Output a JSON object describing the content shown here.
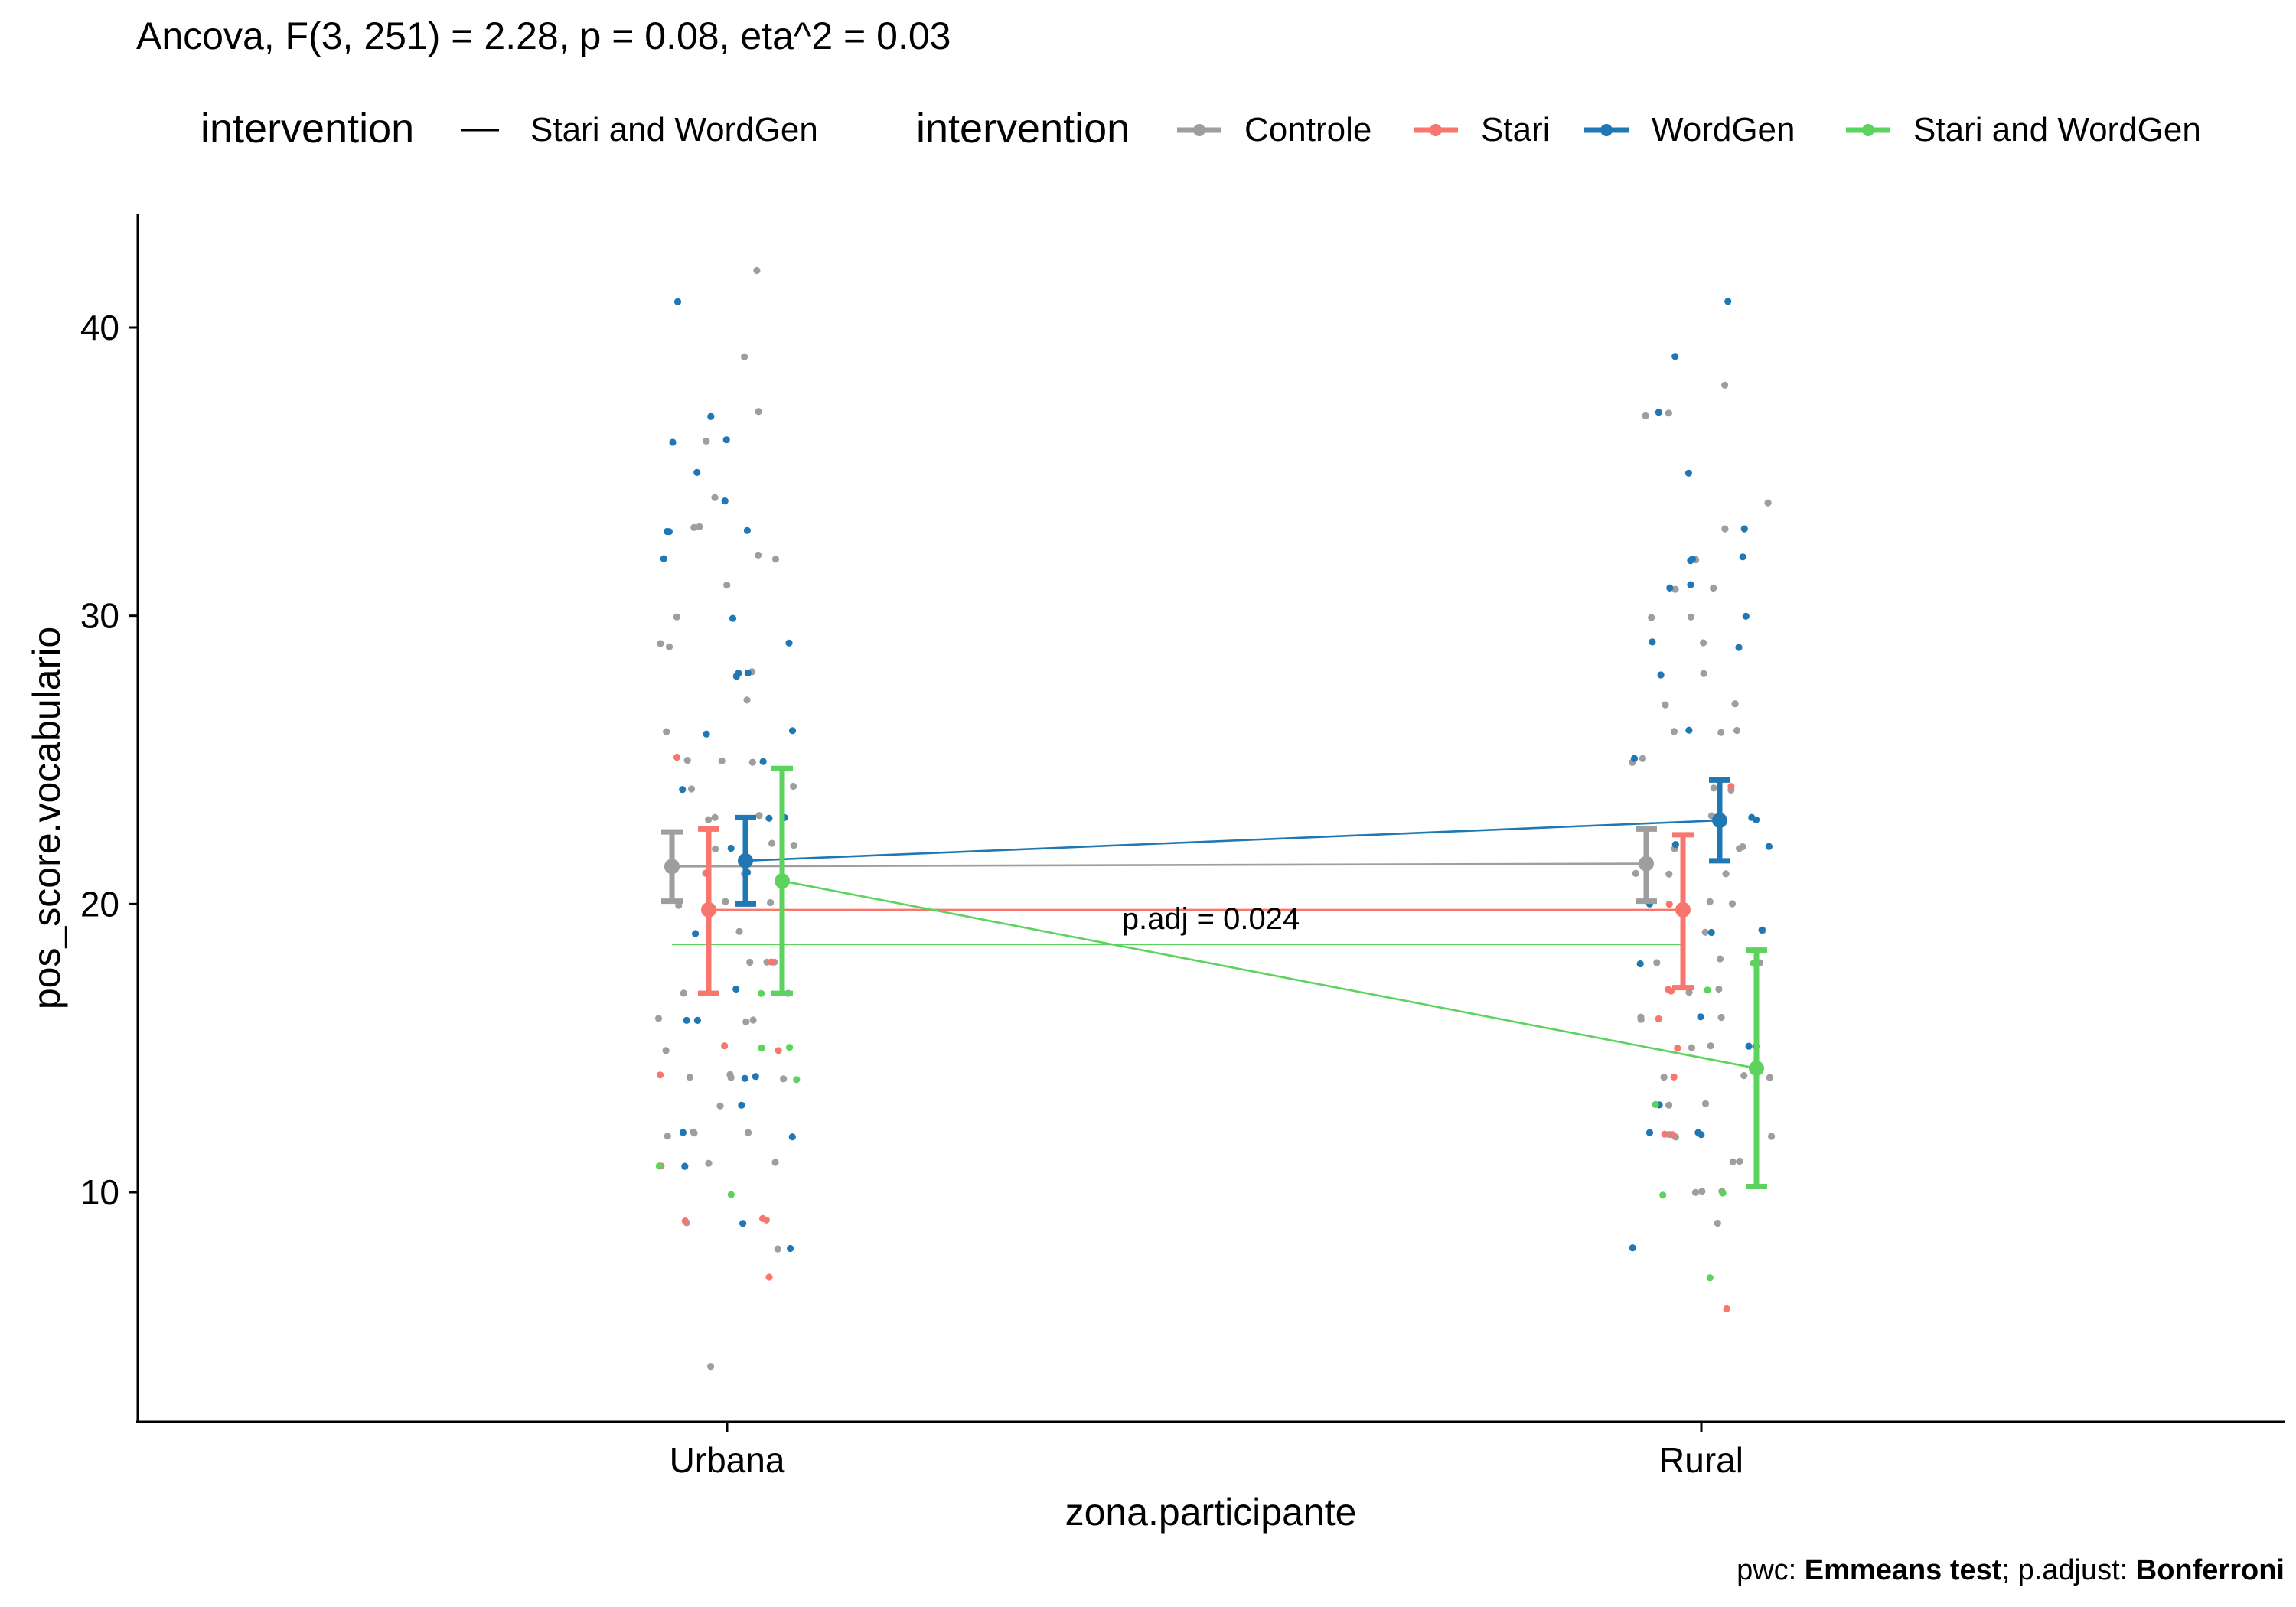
{
  "chart_data": {
    "type": "scatter",
    "title": "Ancova, F(3, 251) = 2.28, p = 0.08, eta^2 = 0.03",
    "xlabel": "zona.participante",
    "ylabel": "pos_score.vocabulario",
    "categories": [
      "Urbana",
      "Rural"
    ],
    "ylim": [
      3,
      44
    ],
    "yticks": [
      10,
      20,
      30,
      40
    ],
    "grid": false,
    "legend_placement": "top",
    "legend_line": {
      "title": "intervention",
      "label": "Stari and WordGen"
    },
    "legend_points": {
      "title": "intervention"
    },
    "series": [
      {
        "name": "Controle",
        "color": "#9e9e9e",
        "means": [
          21.3,
          21.4
        ],
        "ci_low": [
          20.1,
          20.1
        ],
        "ci_high": [
          22.5,
          22.6
        ],
        "points": {
          "Urbana": [
            34,
            36,
            33,
            32,
            29,
            28,
            25,
            24,
            23,
            22,
            21,
            20,
            19,
            18,
            17,
            16,
            14,
            14,
            13,
            12,
            12,
            11,
            9,
            39,
            37,
            42,
            33,
            32,
            29,
            27,
            26,
            25,
            24,
            23,
            22,
            21,
            20,
            18,
            17,
            16,
            15,
            14,
            12,
            11,
            8,
            4,
            31,
            30,
            25,
            23,
            22,
            20,
            18,
            16,
            14,
            12
          ],
          "Rural": [
            37,
            33,
            31,
            29,
            27,
            26,
            25,
            24,
            23,
            22,
            21,
            20,
            19,
            18,
            17,
            16,
            15,
            14,
            13,
            12,
            11,
            10,
            10,
            37,
            34,
            32,
            31,
            30,
            28,
            27,
            26,
            25,
            24,
            22,
            21,
            20,
            19,
            18,
            17,
            16,
            15,
            14,
            13,
            12,
            11,
            10,
            38,
            30,
            26,
            22,
            21,
            18,
            16,
            14,
            12,
            9
          ]
        }
      },
      {
        "name": "Stari",
        "color": "#f8766d",
        "means": [
          19.8,
          19.8
        ],
        "ci_low": [
          16.9,
          17.1
        ],
        "ci_high": [
          22.6,
          22.4
        ],
        "points": {
          "Urbana": [
            25,
            21,
            14,
            11,
            9,
            9,
            7,
            18,
            15,
            9,
            15
          ],
          "Rural": [
            16,
            14,
            12,
            6,
            24,
            20,
            17,
            15,
            12,
            17
          ]
        }
      },
      {
        "name": "WordGen",
        "color": "#1f78b4",
        "means": [
          21.5,
          22.9
        ],
        "ci_low": [
          20.0,
          21.5
        ],
        "ci_high": [
          23.0,
          24.3
        ],
        "points": {
          "Urbana": [
            36,
            33,
            33,
            30,
            28,
            26,
            23,
            21,
            16,
            13,
            12,
            37,
            35,
            29,
            28,
            24,
            23,
            16,
            14,
            11,
            9,
            8,
            41,
            36,
            34,
            33,
            32,
            28,
            26,
            25,
            22,
            19,
            17,
            14,
            12
          ],
          "Rural": [
            33,
            31,
            32,
            30,
            25,
            22,
            19,
            15,
            13,
            12,
            37,
            35,
            32,
            32,
            31,
            28,
            23,
            20,
            18,
            15,
            39,
            41,
            29,
            29,
            26,
            23,
            22,
            19,
            16,
            12,
            12,
            8
          ]
        }
      },
      {
        "name": "Stari and WordGen",
        "color": "#5bd35c",
        "means": [
          20.8,
          14.3
        ],
        "ci_low": [
          16.9,
          10.2
        ],
        "ci_high": [
          24.7,
          18.4
        ],
        "points": {
          "Urbana": [
            15,
            10,
            17,
            15,
            14,
            11
          ],
          "Rural": [
            18,
            10,
            13,
            10,
            7,
            17
          ]
        }
      }
    ],
    "annotations": [
      {
        "text": "p.adj = 0.024",
        "color": "#5bd35c"
      }
    ],
    "caption": {
      "prefix": "pwc: ",
      "test": "Emmeans test",
      "middle": "; p.adjust: ",
      "adjust": "Bonferroni"
    }
  }
}
